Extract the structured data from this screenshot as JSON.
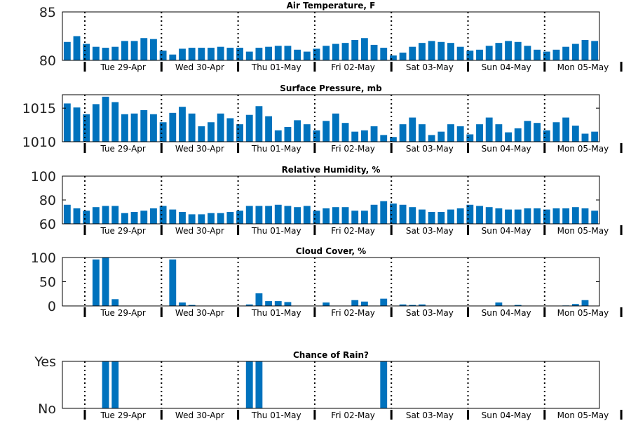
{
  "chart_data": [
    {
      "type": "bar",
      "title": "Air Temperature, F",
      "ylim": [
        80,
        85
      ],
      "yticks": [
        80,
        85
      ],
      "ytick_labels": [
        "80",
        "85"
      ],
      "values": [
        81.9,
        82.5,
        81.7,
        81.4,
        81.3,
        81.4,
        82.0,
        82.0,
        82.3,
        82.2,
        81.0,
        80.6,
        81.2,
        81.3,
        81.3,
        81.3,
        81.4,
        81.3,
        81.3,
        80.9,
        81.3,
        81.4,
        81.5,
        81.5,
        81.1,
        80.9,
        81.2,
        81.5,
        81.7,
        81.8,
        82.1,
        82.3,
        81.6,
        81.3,
        80.5,
        80.8,
        81.4,
        81.8,
        82.0,
        81.9,
        81.8,
        81.4,
        81.0,
        81.1,
        81.5,
        81.8,
        82.0,
        81.9,
        81.5,
        81.1,
        80.9,
        81.1,
        81.4,
        81.7,
        82.1,
        82.0
      ]
    },
    {
      "type": "bar",
      "title": "Surface Pressure, mb",
      "ylim": [
        1010,
        1017
      ],
      "yticks": [
        1010,
        1015
      ],
      "ytick_labels": [
        "1010",
        "1015"
      ],
      "values": [
        1015.7,
        1015.1,
        1014.1,
        1015.6,
        1016.7,
        1015.9,
        1014.1,
        1014.2,
        1014.7,
        1014.1,
        1012.9,
        1014.3,
        1015.2,
        1014.2,
        1012.3,
        1012.9,
        1014.2,
        1013.5,
        1012.6,
        1014.0,
        1015.3,
        1013.8,
        1011.7,
        1012.2,
        1013.2,
        1012.6,
        1011.7,
        1013.1,
        1014.2,
        1012.8,
        1011.5,
        1011.7,
        1012.3,
        1011.0,
        1010.7,
        1012.6,
        1013.6,
        1012.6,
        1011.0,
        1011.5,
        1012.6,
        1012.3,
        1011.1,
        1012.6,
        1013.6,
        1012.6,
        1011.4,
        1012.0,
        1013.1,
        1012.8,
        1011.7,
        1012.9,
        1013.6,
        1012.4,
        1011.2,
        1011.5
      ]
    },
    {
      "type": "bar",
      "title": "Relative Humidity, %",
      "ylim": [
        60,
        100
      ],
      "yticks": [
        60,
        80,
        100
      ],
      "ytick_labels": [
        "60",
        "80",
        "100"
      ],
      "values": [
        76,
        73,
        71,
        74,
        75,
        75,
        69,
        70,
        71,
        73,
        75,
        72,
        70,
        68,
        68,
        69,
        69,
        70,
        71,
        75,
        75,
        75,
        76,
        75,
        74,
        75,
        71,
        73,
        74,
        74,
        71,
        71,
        76,
        79,
        77,
        76,
        74,
        72,
        70,
        70,
        72,
        73,
        76,
        75,
        74,
        73,
        72,
        72,
        73,
        73,
        72,
        73,
        73,
        74,
        73,
        71
      ]
    },
    {
      "type": "bar",
      "title": "Cloud Cover, %",
      "ylim": [
        0,
        100
      ],
      "yticks": [
        0,
        50,
        100
      ],
      "ytick_labels": [
        "0",
        "50",
        "100"
      ],
      "values": [
        0,
        0,
        0,
        96,
        100,
        14,
        0,
        0,
        0,
        0,
        0,
        96,
        7,
        2,
        0,
        0,
        0,
        0,
        0,
        3,
        26,
        10,
        10,
        8,
        0,
        0,
        0,
        7,
        0,
        0,
        12,
        9,
        0,
        15,
        0,
        3,
        2,
        3,
        0,
        0,
        0,
        0,
        0,
        0,
        0,
        7,
        0,
        2,
        0,
        0,
        0,
        0,
        1,
        4,
        12,
        0
      ]
    },
    {
      "type": "bar",
      "title": "Chance of Rain?",
      "ylim": [
        0,
        1
      ],
      "yticks": [
        0,
        1
      ],
      "ytick_labels": [
        "No",
        "Yes"
      ],
      "values": [
        0,
        0,
        0,
        0,
        1,
        1,
        0,
        0,
        0,
        0,
        0,
        0,
        0,
        0,
        0,
        0,
        0,
        0,
        0,
        1,
        1,
        0,
        0,
        0,
        0,
        0,
        0,
        0,
        0,
        0,
        0,
        0,
        0,
        1,
        0,
        0,
        0,
        0,
        0,
        0,
        0,
        0,
        0,
        0,
        0,
        0,
        0,
        0,
        0,
        0,
        0,
        0,
        0,
        0,
        0,
        0
      ]
    }
  ],
  "x_day_labels": [
    "Tue 29-Apr",
    "Wed 30-Apr",
    "Thu 01-May",
    "Fri 02-May",
    "Sat 03-May",
    "Sun 04-May",
    "Mon 05-May"
  ],
  "bars_per_day": 8,
  "grid": "dotted vertical at day boundaries",
  "colors": {
    "bar": "#0072bd",
    "axis": "#000000"
  }
}
